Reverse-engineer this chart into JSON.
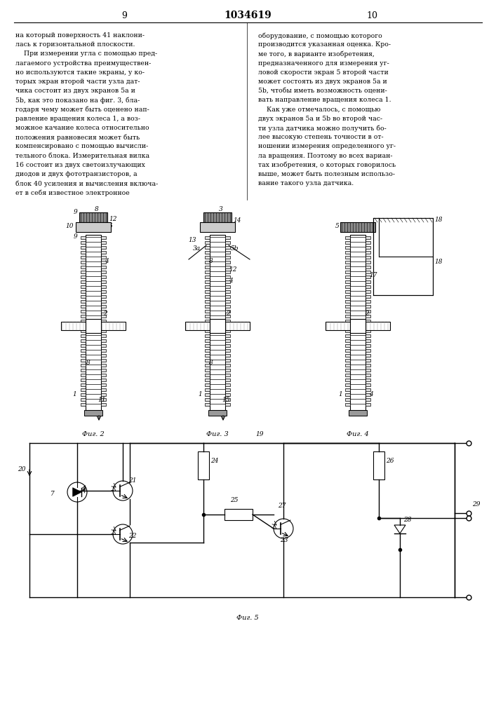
{
  "page_width": 7.07,
  "page_height": 10.0,
  "background_color": "#ffffff",
  "page_num_left": "9",
  "page_num_center": "1034619",
  "page_num_right": "10",
  "text_left": [
    "на который поверхность 41 наклони-",
    "лась к горизонтальной плоскости.",
    "    При измерении угла с помощью пред-",
    "лагаемого устройства преимуществен-",
    "но используются такие экраны, у ко-",
    "торых экран второй части узла дат-",
    "чика состоит из двух экранов 5а и",
    "5b, как это показано на фиг. 3, бла-",
    "годаря чему может быть оценено нап-",
    "равление вращения колеса 1, а воз-",
    "можное качание колеса относительно",
    "положения равновесия может быть",
    "компенсировано с помощью вычисли-",
    "тельного блока. Измерительная вилка",
    "16 состоит из двух светоизлучающих",
    "диодов и двух фототранзисторов, а",
    "блок 40 усиления и вычисления включа-",
    "ет в себя известное электронное"
  ],
  "text_right": [
    "оборудование, с помощью которого",
    "производится указанная оценка. Кро-",
    "ме того, в варианте изобретения,",
    "предназначенного для измерения уг-",
    "ловой скорости экран 5 второй части",
    "может состоять из двух экранов 5а и",
    "5b, чтобы иметь возможность оцени-",
    "вать направление вращения колеса 1.",
    "    Как уже отмечалось, с помощью",
    "двух экранов 5а и 5b во второй час-",
    "ти узла датчика можно получить бо-",
    "лее высокую степень точности в от-",
    "ношении измерения определенного уг-",
    "ла вращения. Поэтому во всех вариан-",
    "тах изобретения, о которых говорилось",
    "выше, может быть полезным использо-",
    "вание такого узла датчика."
  ],
  "fig2_label": "Фиг. 2",
  "fig3_label": "Фиг. 3",
  "fig4_label": "Фиг. 4",
  "fig5_label": "Фиг. 5"
}
